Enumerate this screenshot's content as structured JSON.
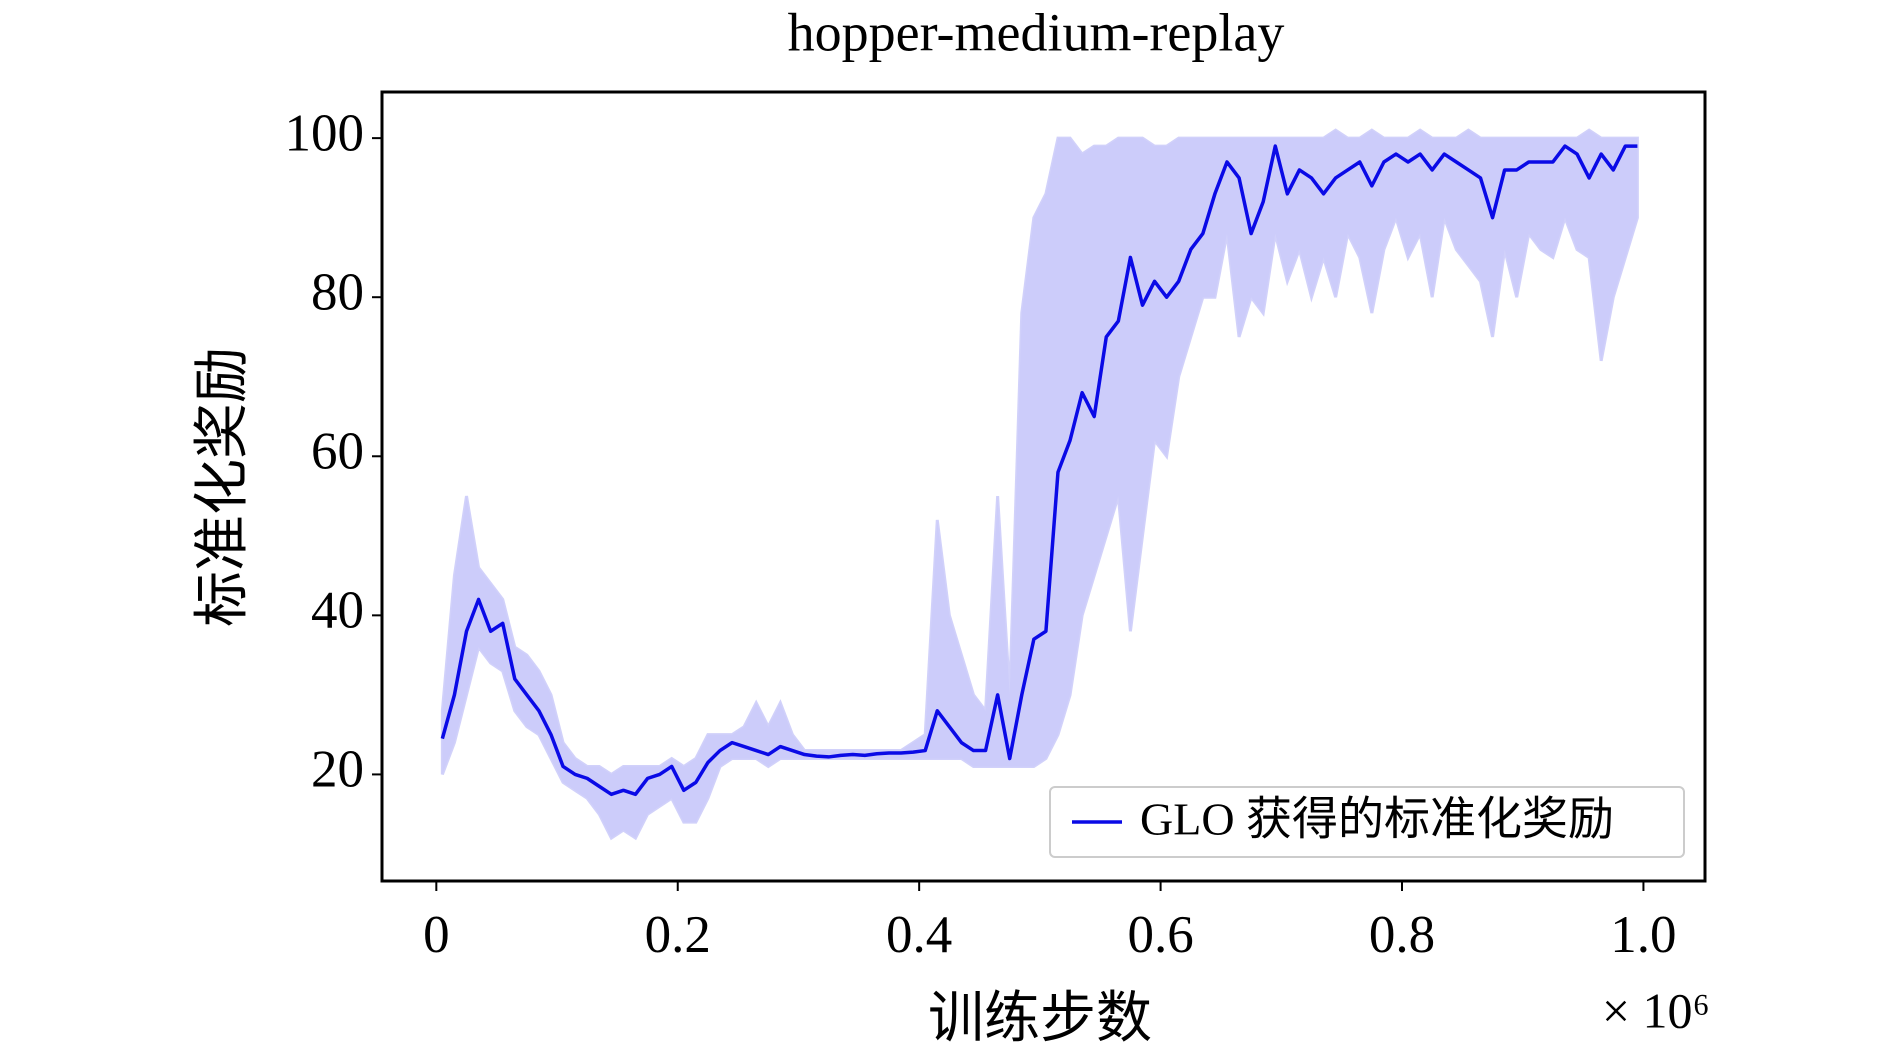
{
  "chart_data": {
    "type": "line",
    "title": "hopper-medium-replay",
    "xlabel": "训练步数",
    "ylabel": "标准化奖励",
    "x_offset_label": "× 10⁶",
    "x": [
      0.005,
      0.015,
      0.025,
      0.035,
      0.045,
      0.055,
      0.065,
      0.075,
      0.085,
      0.095,
      0.105,
      0.115,
      0.125,
      0.135,
      0.145,
      0.155,
      0.165,
      0.175,
      0.185,
      0.195,
      0.205,
      0.215,
      0.225,
      0.235,
      0.245,
      0.255,
      0.265,
      0.275,
      0.285,
      0.295,
      0.305,
      0.315,
      0.325,
      0.335,
      0.345,
      0.355,
      0.365,
      0.375,
      0.385,
      0.395,
      0.405,
      0.415,
      0.425,
      0.435,
      0.445,
      0.455,
      0.465,
      0.475,
      0.485,
      0.495,
      0.505,
      0.515,
      0.525,
      0.535,
      0.545,
      0.555,
      0.565,
      0.575,
      0.585,
      0.595,
      0.605,
      0.615,
      0.625,
      0.635,
      0.645,
      0.655,
      0.665,
      0.675,
      0.685,
      0.695,
      0.705,
      0.715,
      0.725,
      0.735,
      0.745,
      0.755,
      0.765,
      0.775,
      0.785,
      0.795,
      0.805,
      0.815,
      0.825,
      0.835,
      0.845,
      0.855,
      0.865,
      0.875,
      0.885,
      0.895,
      0.905,
      0.915,
      0.925,
      0.935,
      0.945,
      0.955,
      0.965,
      0.975,
      0.985,
      0.995
    ],
    "series": [
      {
        "name": "GLO 获得的标准化奖励",
        "color": "#0a0ae6",
        "band_color": "#ccccfa",
        "values": [
          24.5,
          30,
          38,
          42,
          38,
          39,
          32,
          30,
          28,
          25,
          21,
          20,
          19.5,
          18.5,
          17.5,
          18,
          17.5,
          19.5,
          20,
          21,
          18,
          19,
          21.5,
          23,
          24,
          23.5,
          23,
          22.5,
          23.5,
          23,
          22.5,
          22.3,
          22.2,
          22.4,
          22.5,
          22.4,
          22.6,
          22.7,
          22.7,
          22.8,
          23,
          28,
          26,
          24,
          23,
          23,
          30,
          22,
          30,
          37,
          38,
          58,
          62,
          68,
          65,
          75,
          77,
          85,
          79,
          82,
          80,
          82,
          86,
          88,
          93,
          97,
          95,
          88,
          92,
          99,
          93,
          96,
          95,
          93,
          95,
          96,
          97,
          94,
          97,
          98,
          97,
          98,
          96,
          98,
          97,
          96,
          95,
          90,
          96,
          96,
          97,
          97,
          97,
          99,
          98,
          95,
          98,
          96,
          99,
          99
        ],
        "lower": [
          20,
          24,
          30,
          36,
          34,
          33,
          28,
          26,
          25,
          22,
          19,
          18,
          17,
          15,
          12,
          13,
          12,
          15,
          16,
          17,
          14,
          14,
          17,
          21,
          22,
          22,
          22,
          21,
          22,
          22,
          22,
          22,
          22,
          22,
          22,
          22,
          22,
          22,
          22,
          22,
          22,
          22,
          22,
          22,
          21,
          21,
          21,
          21,
          21,
          21,
          22,
          25,
          30,
          40,
          45,
          50,
          55,
          38,
          50,
          62,
          60,
          70,
          75,
          80,
          80,
          88,
          75,
          80,
          78,
          88,
          82,
          86,
          80,
          85,
          80,
          88,
          85,
          78,
          86,
          90,
          85,
          88,
          80,
          90,
          86,
          84,
          82,
          75,
          86,
          80,
          88,
          86,
          85,
          90,
          86,
          85,
          72,
          80,
          85,
          90
        ],
        "upper": [
          28,
          45,
          55,
          46,
          44,
          42,
          36,
          35,
          33,
          30,
          24,
          22,
          21,
          21,
          20,
          21,
          21,
          21,
          21,
          22,
          21,
          22,
          25,
          25,
          25,
          26,
          29,
          26,
          29,
          25,
          23,
          23,
          23,
          23,
          23,
          23,
          23,
          23,
          23,
          24,
          25,
          52,
          40,
          35,
          30,
          28,
          55,
          30,
          78,
          90,
          93,
          100,
          100,
          98,
          99,
          99,
          100,
          100,
          100,
          99,
          99,
          100,
          100,
          100,
          100,
          100,
          100,
          100,
          100,
          100,
          100,
          100,
          100,
          100,
          101,
          100,
          100,
          101,
          100,
          100,
          100,
          101,
          100,
          100,
          100,
          101,
          100,
          100,
          100,
          100,
          100,
          100,
          100,
          100,
          100,
          101,
          100,
          100,
          100,
          100
        ]
      }
    ],
    "xlim": [
      -0.045,
      1.051
    ],
    "xticks": [
      0,
      0.2,
      0.4,
      0.6,
      0.8,
      {
        "value": 1,
        "label": "1.0"
      }
    ],
    "ylim": [
      6.6,
      105.8
    ],
    "yticks": [
      20,
      40,
      60,
      80,
      100
    ],
    "legend": "lower right"
  }
}
